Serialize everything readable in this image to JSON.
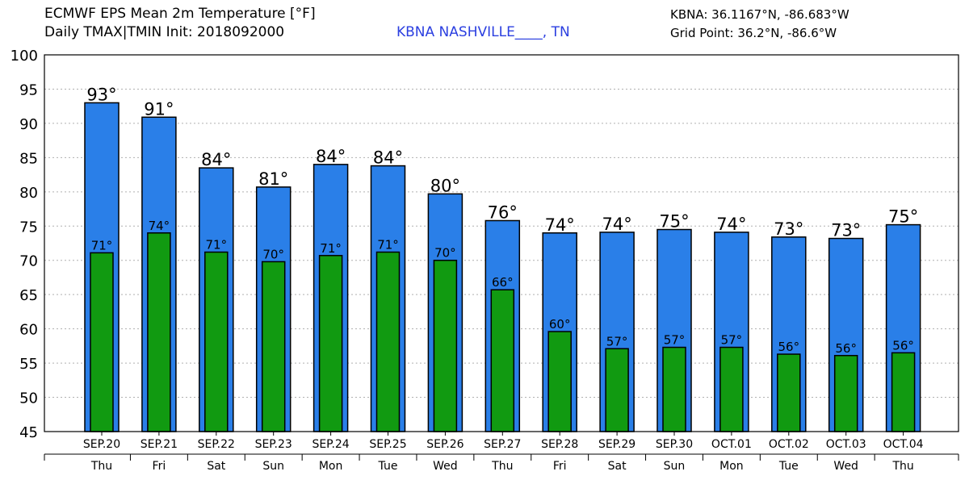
{
  "header": {
    "title_line1": "ECMWF EPS Mean 2m Temperature [°F]",
    "title_line2": "Daily TMAX|TMIN Init: 2018092000",
    "station": "KBNA NASHVILLE____, TN",
    "station_coords": "KBNA: 36.1167°N, -86.683°W",
    "grid_point": "Grid Point: 36.2°N, -86.6°W"
  },
  "colors": {
    "tmax_bar": "#2a7fe8",
    "tmin_bar": "#119a11",
    "station_text": "#2b3fe0",
    "grid": "#b0b0b0"
  },
  "chart_data": {
    "type": "bar",
    "ylim": [
      45,
      100
    ],
    "yticks": [
      45,
      50,
      55,
      60,
      65,
      70,
      75,
      80,
      85,
      90,
      95,
      100
    ],
    "grid": true,
    "categories": [
      "SEP.20",
      "SEP.21",
      "SEP.22",
      "SEP.23",
      "SEP.24",
      "SEP.25",
      "SEP.26",
      "SEP.27",
      "SEP.28",
      "SEP.29",
      "SEP.30",
      "OCT.01",
      "OCT.02",
      "OCT.03",
      "OCT.04"
    ],
    "weekdays": [
      "Thu",
      "Fri",
      "Sat",
      "Sun",
      "Mon",
      "Tue",
      "Wed",
      "Thu",
      "Fri",
      "Sat",
      "Sun",
      "Mon",
      "Tue",
      "Wed",
      "Thu"
    ],
    "series": [
      {
        "values": [
          93,
          90.9,
          83.5,
          80.7,
          84,
          83.8,
          79.7,
          75.8,
          74,
          74.1,
          74.5,
          74.1,
          73.4,
          73.2,
          75.2
        ],
        "labels": [
          "93°",
          "91°",
          "84°",
          "81°",
          "84°",
          "84°",
          "80°",
          "76°",
          "74°",
          "74°",
          "75°",
          "74°",
          "73°",
          "73°",
          "75°"
        ]
      },
      {
        "values": [
          71.1,
          74,
          71.2,
          69.8,
          70.7,
          71.2,
          70,
          65.7,
          59.6,
          57.1,
          57.3,
          57.3,
          56.3,
          56.1,
          56.5
        ],
        "labels": [
          "71°",
          "74°",
          "71°",
          "70°",
          "71°",
          "71°",
          "70°",
          "66°",
          "60°",
          "57°",
          "57°",
          "57°",
          "56°",
          "56°",
          "56°"
        ]
      }
    ]
  }
}
